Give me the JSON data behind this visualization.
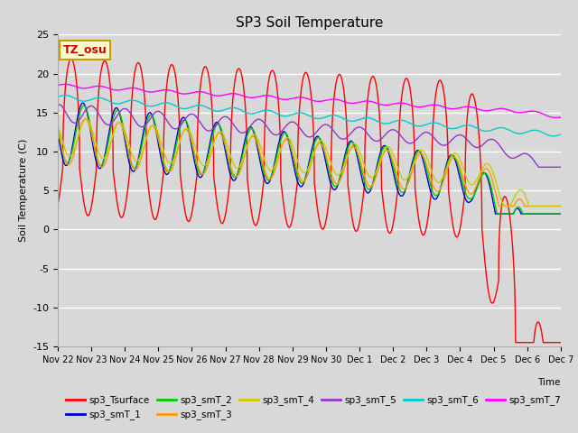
{
  "title": "SP3 Soil Temperature",
  "xlabel": "Time",
  "ylabel": "Soil Temperature (C)",
  "ylim": [
    -15,
    25
  ],
  "background_color": "#d8d8d8",
  "plot_bg_color": "#d8d8d8",
  "grid_color": "white",
  "series_colors": {
    "sp3_Tsurface": "#ff0000",
    "sp3_smT_1": "#0000cc",
    "sp3_smT_2": "#00cc00",
    "sp3_smT_3": "#ff9900",
    "sp3_smT_4": "#cccc00",
    "sp3_smT_5": "#9933cc",
    "sp3_smT_6": "#00cccc",
    "sp3_smT_7": "#ff00ff"
  },
  "x_tick_labels": [
    "Nov 22",
    "Nov 23",
    "Nov 24",
    "Nov 25",
    "Nov 26",
    "Nov 27",
    "Nov 28",
    "Nov 29",
    "Nov 30",
    "Dec 1",
    "Dec 2",
    "Dec 3",
    "Dec 4",
    "Dec 5",
    "Dec 6",
    "Dec 7"
  ],
  "n_points": 3000,
  "tz_label": "TZ_osu"
}
